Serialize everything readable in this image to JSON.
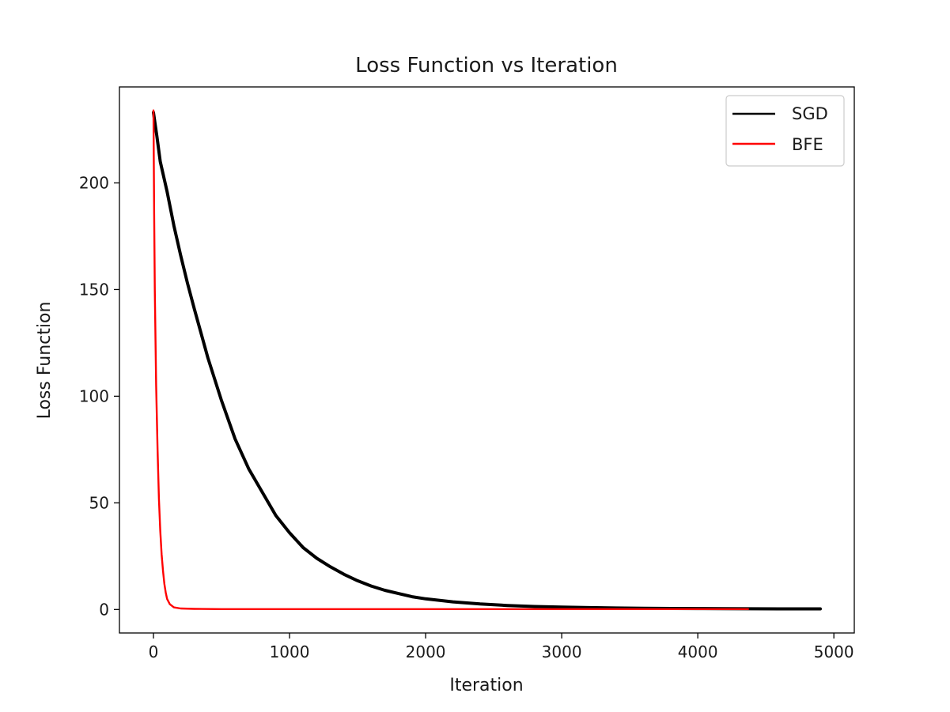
{
  "chart_data": {
    "type": "line",
    "title": "Loss Function vs Iteration",
    "xlabel": "Iteration",
    "ylabel": "Loss Function",
    "xlim": [
      -250,
      5150
    ],
    "ylim": [
      -11,
      245
    ],
    "xticks": [
      0,
      1000,
      2000,
      3000,
      4000,
      5000
    ],
    "yticks": [
      0,
      50,
      100,
      150,
      200
    ],
    "grid": false,
    "legend_position": "upper right",
    "series": [
      {
        "name": "SGD",
        "color": "#000000",
        "x": [
          0,
          25,
          50,
          100,
          150,
          200,
          250,
          300,
          400,
          500,
          600,
          700,
          800,
          900,
          1000,
          1100,
          1200,
          1300,
          1400,
          1500,
          1600,
          1700,
          1800,
          1900,
          2000,
          2200,
          2400,
          2600,
          2800,
          3000,
          3200,
          3400,
          3600,
          3800,
          4000,
          4200,
          4400,
          4600,
          4900
        ],
        "y": [
          233,
          222,
          210,
          196,
          180,
          166,
          153,
          141,
          118,
          98,
          80,
          66,
          55,
          44,
          36,
          29,
          24,
          20,
          16.5,
          13.5,
          11,
          9,
          7.5,
          6,
          5,
          3.6,
          2.6,
          1.9,
          1.4,
          1.1,
          0.9,
          0.7,
          0.6,
          0.5,
          0.45,
          0.4,
          0.35,
          0.3,
          0.3
        ]
      },
      {
        "name": "BFE",
        "color": "#ff0000",
        "x": [
          0,
          5,
          10,
          20,
          30,
          40,
          50,
          60,
          70,
          80,
          90,
          100,
          120,
          150,
          200,
          300,
          500,
          1000,
          2000,
          3000,
          4000,
          4370
        ],
        "y": [
          234,
          185,
          150,
          105,
          75,
          52,
          37,
          26,
          18,
          12,
          8,
          5,
          2.5,
          1,
          0.5,
          0.3,
          0.2,
          0.2,
          0.2,
          0.2,
          0.2,
          0.2
        ]
      }
    ]
  }
}
